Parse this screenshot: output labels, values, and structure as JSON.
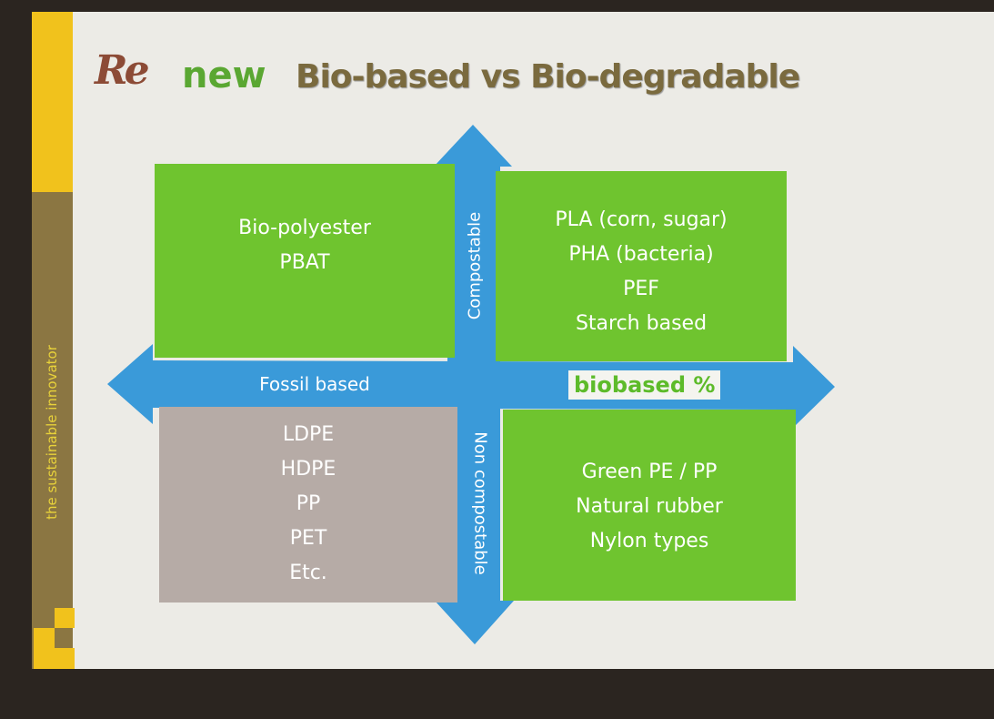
{
  "slide": {
    "logo": {
      "re": "Re",
      "new": "new"
    },
    "title": "Bio-based vs Bio-degradable",
    "tagline": "the sustainable innovator",
    "axes": {
      "top": "Compostable",
      "bottom": "Non compostable",
      "left": "Fossil based",
      "right": "biobased %"
    },
    "quadrants": {
      "top_left": [
        "Bio-polyester",
        "PBAT"
      ],
      "top_right": [
        "PLA (corn, sugar)",
        "PHA (bacteria)",
        "PEF",
        "Starch based"
      ],
      "bottom_left": [
        "LDPE",
        "HDPE",
        "PP",
        "PET",
        "Etc."
      ],
      "bottom_right": [
        "Green PE / PP",
        "Natural rubber",
        "Nylon types"
      ]
    },
    "colors": {
      "arrow": "#3a9ad9",
      "green_box": "#6fc42f",
      "gray_box": "#b6aba6",
      "accent_yellow": "#f1c21c",
      "olive": "#8b7642"
    }
  }
}
